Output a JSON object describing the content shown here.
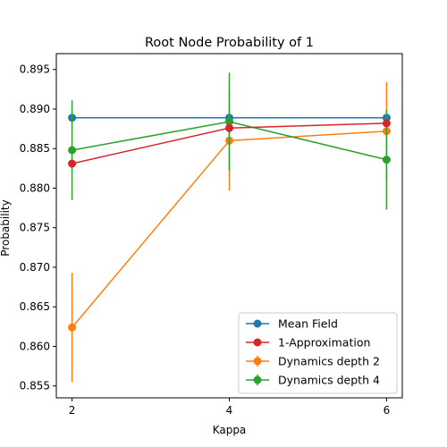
{
  "chart_data": {
    "type": "line",
    "title": "Root Node Probability of 1",
    "xlabel": "Kappa",
    "ylabel": "Probability",
    "x": [
      2,
      4,
      6
    ],
    "xlim": [
      1.8,
      6.2
    ],
    "ylim": [
      0.8535,
      0.897
    ],
    "xticks": [
      2,
      4,
      6
    ],
    "yticks": [
      0.855,
      0.86,
      0.865,
      0.87,
      0.875,
      0.88,
      0.885,
      0.89,
      0.895
    ],
    "ytick_labels": [
      "0.855",
      "0.860",
      "0.865",
      "0.870",
      "0.875",
      "0.880",
      "0.885",
      "0.890",
      "0.895"
    ],
    "grid": false,
    "legend_position": "bottom-right",
    "series": [
      {
        "name": "Mean Field",
        "color": "#1f77b4",
        "values": [
          0.8889,
          0.8889,
          0.8889
        ],
        "errors": null
      },
      {
        "name": "Dynamics depth 2",
        "color": "#ff7f0e",
        "values": [
          0.8624,
          0.886,
          0.8872
        ],
        "errors": [
          0.0069,
          0.0063,
          0.0062
        ]
      },
      {
        "name": "Dynamics depth 4",
        "color": "#2ca02c",
        "values": [
          0.8848,
          0.8884,
          0.8836
        ],
        "errors": [
          0.0063,
          0.0062,
          0.0063
        ]
      },
      {
        "name": "1-Approximation",
        "color": "#d62728",
        "values": [
          0.8831,
          0.8876,
          0.8882
        ],
        "errors": null
      }
    ],
    "legend_order": [
      "Mean Field",
      "1-Approximation",
      "Dynamics depth 2",
      "Dynamics depth 4"
    ]
  }
}
